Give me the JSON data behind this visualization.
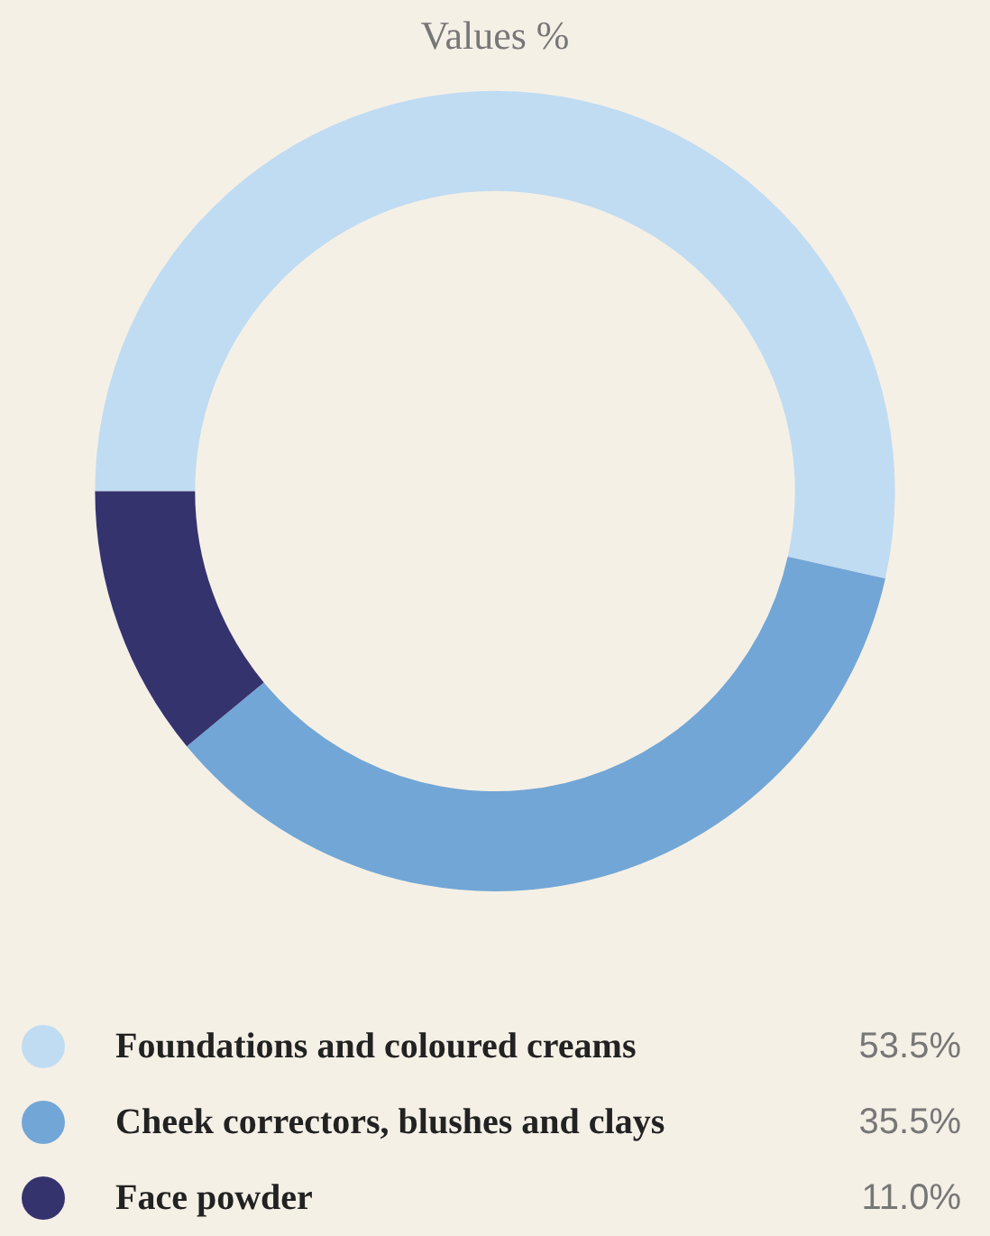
{
  "chart_data": {
    "type": "donut",
    "title": "Values %",
    "categories": [
      "Foundations and coloured creams",
      "Cheek correctors, blushes and clays",
      "Face powder"
    ],
    "values": [
      53.5,
      35.5,
      11.0
    ],
    "colors": [
      "#c0dcf2",
      "#72a6d6",
      "#35336e"
    ],
    "value_labels": [
      "53.5%",
      "35.5%",
      "11.0%"
    ],
    "legend": "bottom"
  }
}
